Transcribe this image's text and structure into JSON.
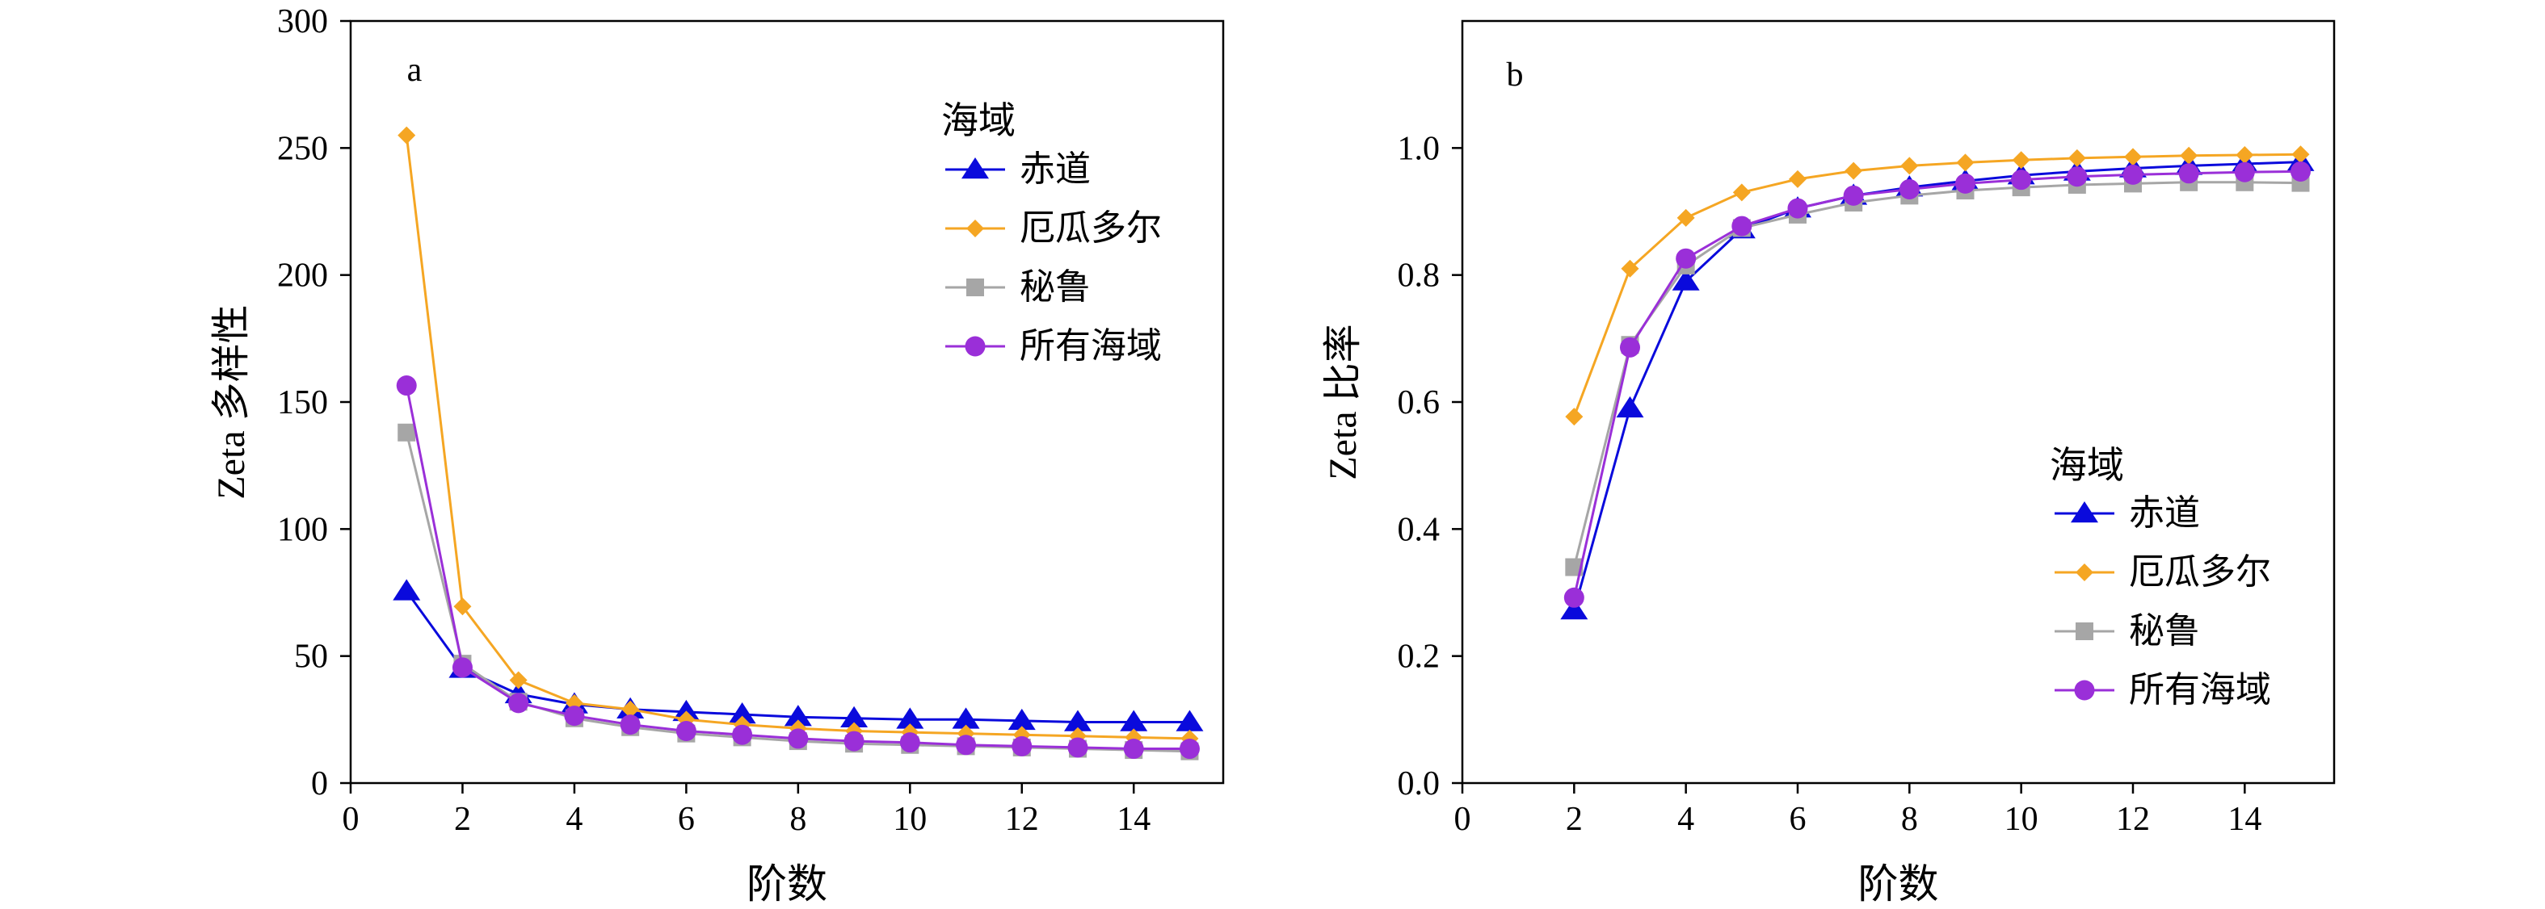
{
  "colors": {
    "赤道": "#0a0adc",
    "厄瓜多尔": "#f5a623",
    "秘鲁": "#a6a6a6",
    "所有海域": "#9a2fd8"
  },
  "chart_data": [
    {
      "type": "line",
      "panel_label": "a",
      "xlabel": "阶数",
      "ylabel": "Zeta 多样性",
      "xlim": [
        0,
        15.6
      ],
      "ylim": [
        0,
        300
      ],
      "x_ticks": [
        0,
        2,
        4,
        6,
        8,
        10,
        12,
        14
      ],
      "y_ticks": [
        0,
        50,
        100,
        150,
        200,
        250,
        300
      ],
      "legend_title": "海域",
      "legend_position": "top-right",
      "x": [
        1,
        2,
        3,
        4,
        5,
        6,
        7,
        8,
        9,
        10,
        11,
        12,
        13,
        14,
        15
      ],
      "series": [
        {
          "name": "赤道",
          "marker": "triangle",
          "values": [
            75.5,
            45,
            35,
            31,
            29,
            28,
            27,
            26,
            25.5,
            25,
            25,
            24.5,
            24,
            24,
            24
          ]
        },
        {
          "name": "厄瓜多尔",
          "marker": "diamond",
          "values": [
            255,
            69.5,
            40.5,
            31.5,
            29,
            25,
            23,
            21.5,
            20.5,
            20,
            19.5,
            19,
            18.5,
            18,
            17.5
          ]
        },
        {
          "name": "秘鲁",
          "marker": "square",
          "values": [
            138,
            47,
            32,
            25.5,
            22,
            19.5,
            18,
            16.5,
            15.5,
            15,
            14.5,
            14,
            13.5,
            13,
            12.5
          ]
        },
        {
          "name": "所有海域",
          "marker": "circle",
          "values": [
            156.5,
            45.5,
            31.5,
            26.5,
            23,
            20.5,
            19,
            17.5,
            16.5,
            16,
            15,
            14.5,
            14,
            13.5,
            13.5
          ]
        }
      ]
    },
    {
      "type": "line",
      "panel_label": "b",
      "xlabel": "阶数",
      "ylabel": "Zeta 比率",
      "xlim": [
        0,
        15.6
      ],
      "ylim": [
        0,
        1.2
      ],
      "x_ticks": [
        0,
        2,
        4,
        6,
        8,
        10,
        12,
        14
      ],
      "y_ticks": [
        "0.0",
        "0.2",
        "0.4",
        "0.6",
        "0.8",
        "1.0"
      ],
      "legend_title": "海域",
      "legend_position": "bottom-right",
      "x": [
        2,
        3,
        4,
        5,
        6,
        7,
        8,
        9,
        10,
        11,
        12,
        13,
        14,
        15
      ],
      "series": [
        {
          "name": "赤道",
          "marker": "triangle",
          "values": [
            0.272,
            0.59,
            0.79,
            0.872,
            0.905,
            0.925,
            0.938,
            0.948,
            0.957,
            0.963,
            0.968,
            0.972,
            0.975,
            0.978
          ]
        },
        {
          "name": "厄瓜多尔",
          "marker": "diamond",
          "values": [
            0.577,
            0.81,
            0.89,
            0.93,
            0.951,
            0.964,
            0.972,
            0.977,
            0.981,
            0.984,
            0.986,
            0.988,
            0.989,
            0.99
          ]
        },
        {
          "name": "秘鲁",
          "marker": "square",
          "values": [
            0.34,
            0.69,
            0.815,
            0.874,
            0.895,
            0.914,
            0.925,
            0.933,
            0.938,
            0.942,
            0.944,
            0.946,
            0.946,
            0.945
          ]
        },
        {
          "name": "所有海域",
          "marker": "circle",
          "values": [
            0.292,
            0.686,
            0.826,
            0.877,
            0.905,
            0.925,
            0.935,
            0.944,
            0.95,
            0.955,
            0.958,
            0.96,
            0.962,
            0.963
          ]
        }
      ]
    }
  ]
}
